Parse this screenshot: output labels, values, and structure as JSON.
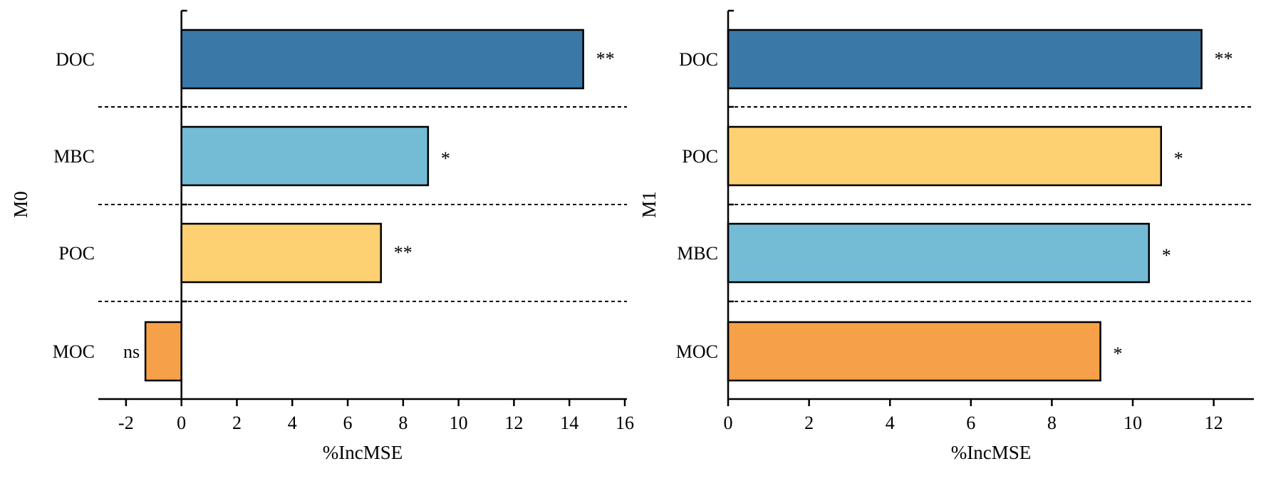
{
  "chart_data": [
    {
      "type": "bar",
      "orientation": "horizontal",
      "ylabel": "M0",
      "xlabel": "%IncMSE",
      "xlim": [
        -3,
        16
      ],
      "xticks": [
        -2,
        0,
        2,
        4,
        6,
        8,
        10,
        12,
        14,
        16
      ],
      "categories": [
        "DOC",
        "MBC",
        "POC",
        "MOC"
      ],
      "values": [
        14.5,
        8.9,
        7.2,
        -1.3
      ],
      "significance": [
        "**",
        "*",
        "**",
        "ns"
      ],
      "colors": [
        "#3a78a8",
        "#74bcd6",
        "#fdd072",
        "#f6a14a"
      ],
      "grid": "dashed separators between categories"
    },
    {
      "type": "bar",
      "orientation": "horizontal",
      "ylabel": "M1",
      "xlabel": "%IncMSE",
      "xlim": [
        0,
        12.5
      ],
      "xticks": [
        0,
        2,
        4,
        6,
        8,
        10,
        12
      ],
      "categories": [
        "DOC",
        "POC",
        "MBC",
        "MOC"
      ],
      "values": [
        11.7,
        10.7,
        10.4,
        9.2
      ],
      "significance": [
        "**",
        "*",
        "*",
        "*"
      ],
      "colors": [
        "#3a78a8",
        "#fdd072",
        "#74bcd6",
        "#f6a14a"
      ],
      "grid": "dashed separators between categories"
    }
  ]
}
